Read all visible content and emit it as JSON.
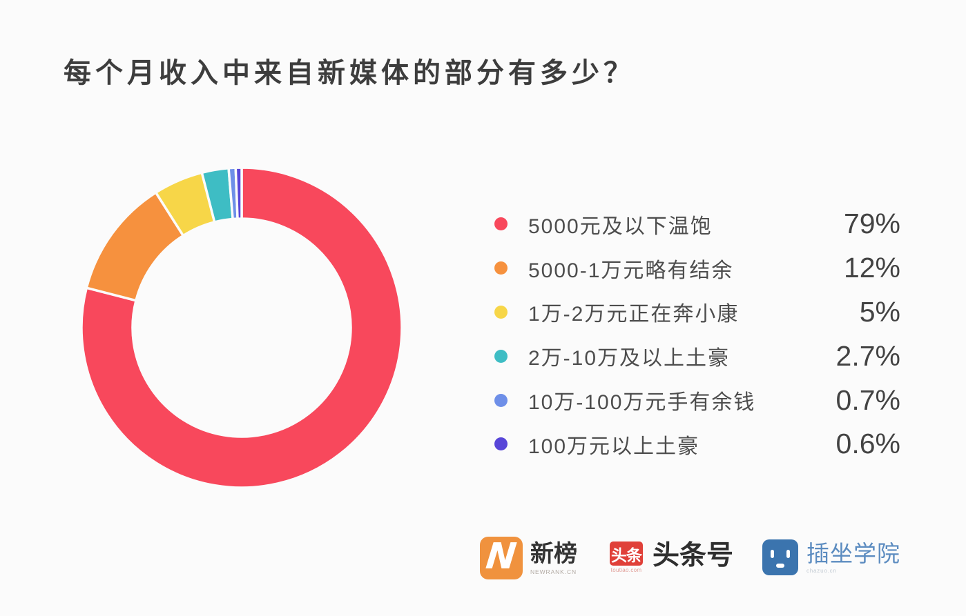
{
  "page": {
    "background": "#fbfbfb"
  },
  "title": "每个月收入中来自新媒体的部分有多少？",
  "chart_data": {
    "type": "pie",
    "subtype": "donut",
    "title": "每个月收入中来自新媒体的部分有多少？",
    "legend_position": "right",
    "donut_hole_ratio": 0.68,
    "outer_radius_px": 232,
    "inner_radius_px": 158,
    "series": [
      {
        "label": "5000元及以下温饱",
        "value": 79,
        "display": "79%",
        "color": "#f8485c"
      },
      {
        "label": "5000-1万元略有结余",
        "value": 12,
        "display": "12%",
        "color": "#f6913e"
      },
      {
        "label": "1万-2万元正在奔小康",
        "value": 5,
        "display": "5%",
        "color": "#f7d648"
      },
      {
        "label": "2万-10万及以上土豪",
        "value": 2.7,
        "display": "2.7%",
        "color": "#3ebdc4"
      },
      {
        "label": "10万-100万元手有余钱",
        "value": 0.7,
        "display": "0.7%",
        "color": "#6e8fe8"
      },
      {
        "label": "100万元以上土豪",
        "value": 0.6,
        "display": "0.6%",
        "color": "#5846d8"
      }
    ]
  },
  "footer": {
    "newrank": {
      "label": "新榜",
      "sublabel": "NEWRANK.CN",
      "icon_letter": "N",
      "icon_color": "#f0923e"
    },
    "toutiao": {
      "label": "头条号",
      "icon_text": "头条",
      "sublabel": "toutiao.com",
      "icon_color": "#e04039"
    },
    "chazuo": {
      "label": "插坐学院",
      "sublabel": "chazuo.cn",
      "icon": "chazuo-face-icon",
      "icon_color": "#3b74ae"
    }
  }
}
